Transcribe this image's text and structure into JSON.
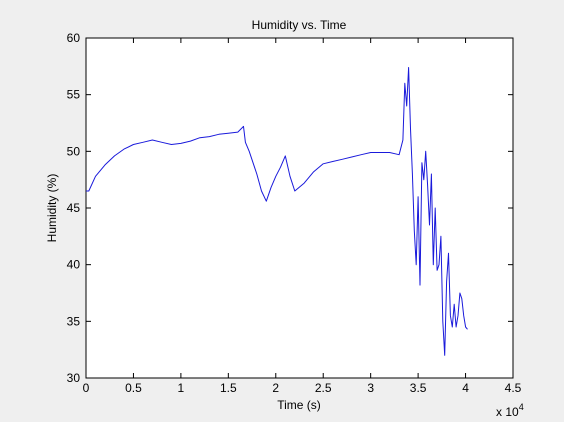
{
  "chart_data": {
    "type": "line",
    "title": "Humidity vs. Time",
    "xlabel": "Time (s)",
    "ylabel": "Humidity (%)",
    "x_multiplier_label": "x 10",
    "x_multiplier_exponent": "4",
    "xlim": [
      0,
      45000
    ],
    "ylim": [
      30,
      60
    ],
    "xticks": [
      0,
      5000,
      10000,
      15000,
      20000,
      25000,
      30000,
      35000,
      40000,
      45000
    ],
    "xtick_labels": [
      "0",
      "0.5",
      "1",
      "1.5",
      "2",
      "2.5",
      "3",
      "3.5",
      "4",
      "4.5"
    ],
    "yticks": [
      30,
      35,
      40,
      45,
      50,
      55,
      60
    ],
    "ytick_labels": [
      "30",
      "35",
      "40",
      "45",
      "50",
      "55",
      "60"
    ],
    "grid": false,
    "colors": {
      "series": "#1a1adb",
      "frame": "#efefef",
      "axes": "#ffffff"
    },
    "series": [
      {
        "x": [
          0,
          300,
          1000,
          2000,
          3000,
          4000,
          5000,
          6000,
          7000,
          8000,
          9000,
          10000,
          11000,
          12000,
          13000,
          14000,
          15000,
          16000,
          16600,
          16800,
          17200,
          18000,
          18500,
          19000,
          19500,
          20000,
          20500,
          21000,
          21500,
          22000,
          23000,
          24000,
          25000,
          26000,
          27000,
          28000,
          29000,
          30000,
          31000,
          32000,
          33000,
          33400,
          33600,
          33800,
          34000,
          34200,
          34400,
          34600,
          34800,
          35000,
          35200,
          35400,
          35600,
          35800,
          36000,
          36200,
          36400,
          36600,
          36800,
          37000,
          37200,
          37400,
          37600,
          37800,
          38000,
          38200,
          38400,
          38600,
          38800,
          39000,
          39200,
          39400,
          39600,
          39800,
          40000,
          40200
        ],
        "y": [
          46.5,
          46.5,
          47.8,
          48.8,
          49.6,
          50.2,
          50.6,
          50.8,
          51.0,
          50.8,
          50.6,
          50.7,
          50.9,
          51.2,
          51.3,
          51.5,
          51.6,
          51.7,
          52.2,
          50.8,
          50.0,
          48.0,
          46.5,
          45.6,
          46.8,
          47.8,
          48.6,
          49.6,
          47.8,
          46.5,
          47.2,
          48.2,
          48.9,
          49.1,
          49.3,
          49.5,
          49.7,
          49.9,
          49.9,
          49.9,
          49.7,
          51.0,
          56.0,
          54.0,
          57.4,
          52.0,
          48.0,
          43.0,
          40.0,
          46.0,
          38.2,
          49.0,
          47.5,
          50.0,
          47.0,
          43.5,
          48.0,
          40.0,
          45.0,
          39.5,
          40.0,
          42.5,
          35.0,
          32.0,
          38.5,
          41.0,
          35.5,
          34.5,
          36.5,
          34.5,
          35.5,
          37.5,
          37.0,
          35.5,
          34.5,
          34.3
        ]
      }
    ]
  }
}
